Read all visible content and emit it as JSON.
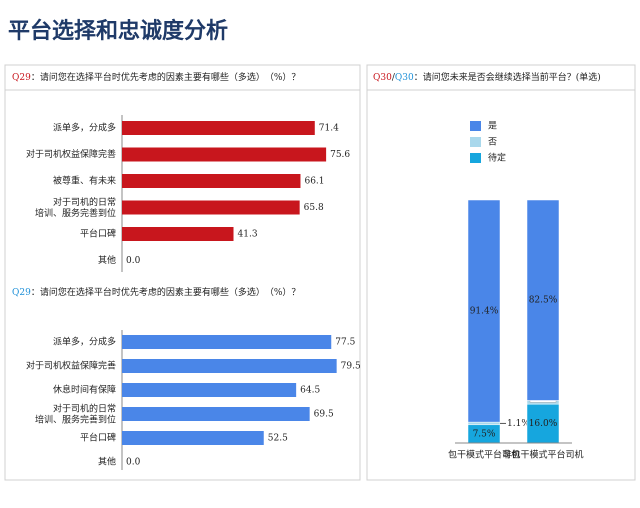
{
  "header": {
    "title": "平台选择和忠诚度分析"
  },
  "chart_data": [
    {
      "type": "hbar",
      "code": "Q29",
      "title": "：请问您在选择平台时优先考虑的因素主要有哪些（多选）　（%）？",
      "categories": [
        "派单多，分成多",
        "对于司机权益保障完善",
        "被尊重、有未来",
        "对于司机的日常\n培训、服务完善到位",
        "平台口碑",
        "其他"
      ],
      "values": [
        71.4,
        75.6,
        66.1,
        65.8,
        41.3,
        0
      ],
      "value_labels": [
        "71.4",
        "75.6",
        "66.1",
        "65.8",
        "41.3",
        "0.0"
      ],
      "color": "#c8161d",
      "code_color": "#c8161d"
    },
    {
      "type": "hbar",
      "code": "Q29",
      "title": "：请问您在选择平台时优先考虑的因素主要有哪些（多选）　（%）？",
      "categories": [
        "派单多，分成多",
        "对于司机权益保障完善",
        "休息时间有保障",
        "对于司机的日常\n培训、服务完善到位",
        "平台口碑",
        "其他"
      ],
      "values": [
        77.5,
        79.5,
        64.5,
        69.5,
        52.5,
        0
      ],
      "value_labels": [
        "77.5",
        "79.5",
        "64.5",
        "69.5",
        "52.5",
        "0.0"
      ],
      "color": "#4a86e8",
      "code_color": "#1e90d8"
    },
    {
      "type": "stacked-bar",
      "code": "Q30",
      "separator": "/",
      "code2": "Q30",
      "title": "：请问您未来是否会继续选择当前平台？(单选)",
      "code_color": "#c8161d",
      "code2_color": "#1e90d8",
      "categories": [
        "包干模式平台司机",
        "非包干模式平台司机"
      ],
      "series": [
        {
          "name": "是",
          "color": "#4a86e8",
          "values": [
            91.4,
            82.5
          ],
          "value_labels": [
            "91.4%",
            "82.5%"
          ]
        },
        {
          "name": "否",
          "color": "#a9d8ec",
          "values": [
            1.1,
            1.5
          ],
          "value_labels": [
            "1.1%",
            "1.5%"
          ]
        },
        {
          "name": "待定",
          "color": "#16a6de",
          "values": [
            7.5,
            16.0
          ],
          "value_labels": [
            "7.5%",
            "16.0%"
          ]
        }
      ]
    }
  ]
}
